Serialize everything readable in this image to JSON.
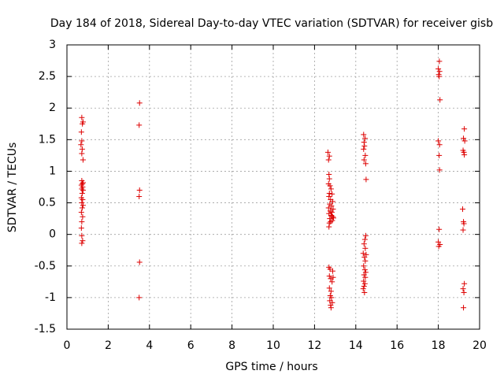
{
  "chart_data": {
    "type": "scatter",
    "title": "Day 184 of 2018, Sidereal Day-to-day VTEC variation (SDTVAR) for receiver gisb",
    "xlabel": "GPS time / hours",
    "ylabel": "SDTVAR / TECUs",
    "xlim": [
      0,
      20
    ],
    "ylim": [
      -1.5,
      3
    ],
    "xticks": [
      0,
      2,
      4,
      6,
      8,
      10,
      12,
      14,
      16,
      18,
      20
    ],
    "yticks": [
      -1.5,
      -1,
      -0.5,
      0,
      0.5,
      1,
      1.5,
      2,
      2.5,
      3
    ],
    "xtick_labels": [
      "0",
      "2",
      "4",
      "6",
      "8",
      "10",
      "12",
      "14",
      "16",
      "18",
      "20"
    ],
    "ytick_labels": [
      "-1.5",
      "-1",
      "-0.5",
      "0",
      "0.5",
      "1",
      "1.5",
      "2",
      "2.5",
      "3"
    ],
    "grid": true,
    "marker": "+",
    "series": [
      {
        "name": "SDTVAR",
        "color": "#dd0000",
        "points": [
          [
            0.72,
            1.85
          ],
          [
            0.78,
            1.78
          ],
          [
            0.75,
            1.75
          ],
          [
            0.7,
            1.62
          ],
          [
            0.72,
            1.48
          ],
          [
            0.68,
            1.42
          ],
          [
            0.74,
            1.35
          ],
          [
            0.72,
            1.28
          ],
          [
            0.78,
            1.18
          ],
          [
            0.72,
            0.85
          ],
          [
            0.78,
            0.82
          ],
          [
            0.75,
            0.8
          ],
          [
            0.7,
            0.78
          ],
          [
            0.76,
            0.75
          ],
          [
            0.72,
            0.72
          ],
          [
            0.78,
            0.7
          ],
          [
            0.74,
            0.65
          ],
          [
            0.7,
            0.58
          ],
          [
            0.76,
            0.55
          ],
          [
            0.72,
            0.5
          ],
          [
            0.78,
            0.46
          ],
          [
            0.74,
            0.42
          ],
          [
            0.7,
            0.35
          ],
          [
            0.76,
            0.28
          ],
          [
            0.72,
            0.2
          ],
          [
            0.7,
            0.1
          ],
          [
            0.72,
            -0.02
          ],
          [
            0.76,
            -0.1
          ],
          [
            0.72,
            -0.14
          ],
          [
            3.52,
            2.08
          ],
          [
            3.5,
            1.73
          ],
          [
            3.52,
            0.7
          ],
          [
            3.5,
            0.6
          ],
          [
            3.52,
            -0.44
          ],
          [
            3.5,
            -1.0
          ],
          [
            12.65,
            1.3
          ],
          [
            12.72,
            1.24
          ],
          [
            12.68,
            1.18
          ],
          [
            12.7,
            0.95
          ],
          [
            12.72,
            0.88
          ],
          [
            12.68,
            0.8
          ],
          [
            12.75,
            0.77
          ],
          [
            12.8,
            0.72
          ],
          [
            12.72,
            0.65
          ],
          [
            12.85,
            0.64
          ],
          [
            12.7,
            0.6
          ],
          [
            12.78,
            0.55
          ],
          [
            12.88,
            0.52
          ],
          [
            12.74,
            0.48
          ],
          [
            12.82,
            0.45
          ],
          [
            12.68,
            0.42
          ],
          [
            12.9,
            0.4
          ],
          [
            12.76,
            0.37
          ],
          [
            12.84,
            0.35
          ],
          [
            12.7,
            0.33
          ],
          [
            12.8,
            0.3
          ],
          [
            12.88,
            0.28
          ],
          [
            12.74,
            0.25
          ],
          [
            12.86,
            0.22
          ],
          [
            12.72,
            0.18
          ],
          [
            12.7,
            0.12
          ],
          [
            12.82,
            0.3
          ],
          [
            12.92,
            0.26
          ],
          [
            12.78,
            0.2
          ],
          [
            12.7,
            -0.52
          ],
          [
            12.75,
            -0.55
          ],
          [
            12.88,
            -0.58
          ],
          [
            12.72,
            -0.66
          ],
          [
            12.9,
            -0.68
          ],
          [
            12.78,
            -0.7
          ],
          [
            12.85,
            -0.75
          ],
          [
            12.72,
            -0.85
          ],
          [
            12.8,
            -0.9
          ],
          [
            12.76,
            -0.97
          ],
          [
            12.82,
            -1.0
          ],
          [
            12.74,
            -1.05
          ],
          [
            12.86,
            -1.08
          ],
          [
            12.78,
            -1.12
          ],
          [
            12.8,
            -1.16
          ],
          [
            14.38,
            1.58
          ],
          [
            14.45,
            1.52
          ],
          [
            14.4,
            1.46
          ],
          [
            14.42,
            1.4
          ],
          [
            14.38,
            1.35
          ],
          [
            14.46,
            1.25
          ],
          [
            14.4,
            1.18
          ],
          [
            14.48,
            1.12
          ],
          [
            14.5,
            0.87
          ],
          [
            14.48,
            -0.02
          ],
          [
            14.44,
            -0.08
          ],
          [
            14.4,
            -0.15
          ],
          [
            14.46,
            -0.22
          ],
          [
            14.36,
            -0.3
          ],
          [
            14.5,
            -0.32
          ],
          [
            14.42,
            -0.36
          ],
          [
            14.46,
            -0.42
          ],
          [
            14.38,
            -0.5
          ],
          [
            14.44,
            -0.56
          ],
          [
            14.48,
            -0.6
          ],
          [
            14.4,
            -0.64
          ],
          [
            14.46,
            -0.68
          ],
          [
            14.38,
            -0.74
          ],
          [
            14.44,
            -0.78
          ],
          [
            14.4,
            -0.82
          ],
          [
            14.36,
            -0.86
          ],
          [
            14.42,
            -0.92
          ],
          [
            18.05,
            2.74
          ],
          [
            18.0,
            2.62
          ],
          [
            18.06,
            2.58
          ],
          [
            18.02,
            2.53
          ],
          [
            18.04,
            2.5
          ],
          [
            18.08,
            2.13
          ],
          [
            18.0,
            1.48
          ],
          [
            18.06,
            1.42
          ],
          [
            18.04,
            1.25
          ],
          [
            18.06,
            1.02
          ],
          [
            18.04,
            0.08
          ],
          [
            18.0,
            -0.12
          ],
          [
            18.08,
            -0.16
          ],
          [
            18.02,
            -0.19
          ],
          [
            19.26,
            1.67
          ],
          [
            19.22,
            1.52
          ],
          [
            19.28,
            1.48
          ],
          [
            19.2,
            1.33
          ],
          [
            19.24,
            1.3
          ],
          [
            19.26,
            1.26
          ],
          [
            19.18,
            0.4
          ],
          [
            19.22,
            0.2
          ],
          [
            19.24,
            0.17
          ],
          [
            19.2,
            0.07
          ],
          [
            19.26,
            -0.78
          ],
          [
            19.2,
            -0.86
          ],
          [
            19.24,
            -0.92
          ],
          [
            19.22,
            -1.16
          ]
        ]
      }
    ]
  }
}
